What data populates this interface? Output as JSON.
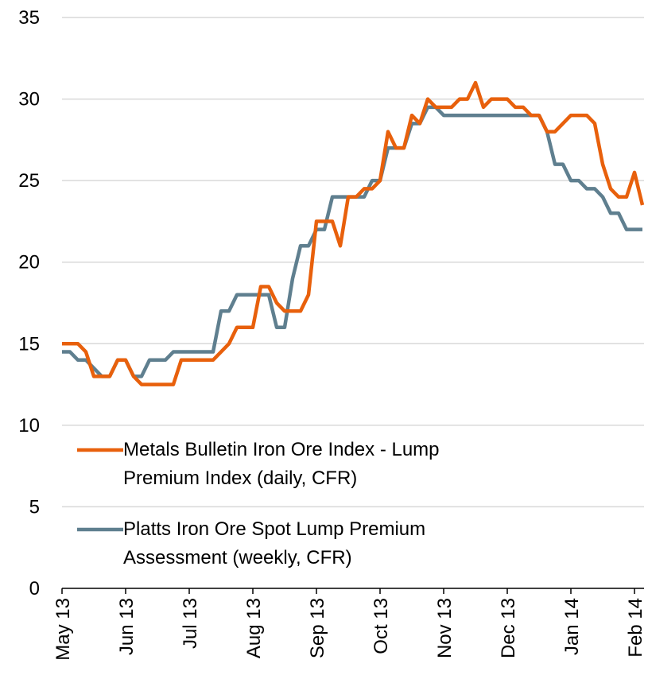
{
  "chart_data": {
    "type": "line",
    "categories": [
      "May 13",
      null,
      null,
      null,
      null,
      null,
      null,
      null,
      "Jun 13",
      null,
      null,
      null,
      null,
      null,
      null,
      null,
      "Jul 13",
      null,
      null,
      null,
      null,
      null,
      null,
      null,
      "Aug 13",
      null,
      null,
      null,
      null,
      null,
      null,
      null,
      "Sep 13",
      null,
      null,
      null,
      null,
      null,
      null,
      null,
      "Oct 13",
      null,
      null,
      null,
      null,
      null,
      null,
      null,
      "Nov 13",
      null,
      null,
      null,
      null,
      null,
      null,
      null,
      "Dec 13",
      null,
      null,
      null,
      null,
      null,
      null,
      null,
      "Jan 14",
      null,
      null,
      null,
      null,
      null,
      null,
      null,
      "Feb 14",
      null
    ],
    "series": [
      {
        "name": "Metals Bulletin Iron Ore Index - Lump Premium Index (daily, CFR)",
        "color": "#e8600c",
        "values": [
          15,
          15,
          15,
          14.5,
          13,
          13,
          13,
          14,
          14,
          13,
          12.5,
          12.5,
          12.5,
          12.5,
          12.5,
          14,
          14,
          14,
          14,
          14,
          14.5,
          15,
          16,
          16,
          16,
          18.5,
          18.5,
          17.5,
          17,
          17,
          17,
          18,
          22.5,
          22.5,
          22.5,
          21,
          24,
          24,
          24.5,
          24.5,
          25,
          28,
          27,
          27,
          29,
          28.5,
          30,
          29.5,
          29.5,
          29.5,
          30,
          30,
          31,
          29.5,
          30,
          30,
          30,
          29.5,
          29.5,
          29,
          29,
          28,
          28,
          28.5,
          29,
          29,
          29,
          28.5,
          26,
          24.5,
          24,
          24,
          25.5,
          23.5
        ]
      },
      {
        "name": "Platts Iron Ore Spot Lump Premium Assessment (weekly, CFR)",
        "color": "#5f7f8f",
        "values": [
          14.5,
          14.5,
          14,
          14,
          13.5,
          13,
          13,
          14,
          14,
          13,
          13,
          14,
          14,
          14,
          14.5,
          14.5,
          14.5,
          14.5,
          14.5,
          14.5,
          17,
          17,
          18,
          18,
          18,
          18,
          18,
          16,
          16,
          19,
          21,
          21,
          22,
          22,
          24,
          24,
          24,
          24,
          24,
          25,
          25,
          27,
          27,
          27,
          28.5,
          28.5,
          29.5,
          29.5,
          29,
          29,
          29,
          29,
          29,
          29,
          29,
          29,
          29,
          29,
          29,
          29,
          29,
          28,
          26,
          26,
          25,
          25,
          24.5,
          24.5,
          24,
          23,
          23,
          22,
          22,
          22
        ]
      }
    ],
    "ylim": [
      0,
      35
    ],
    "yticks": [
      0,
      5,
      10,
      15,
      20,
      25,
      30,
      35
    ],
    "grid": true,
    "legend": "lower left"
  }
}
